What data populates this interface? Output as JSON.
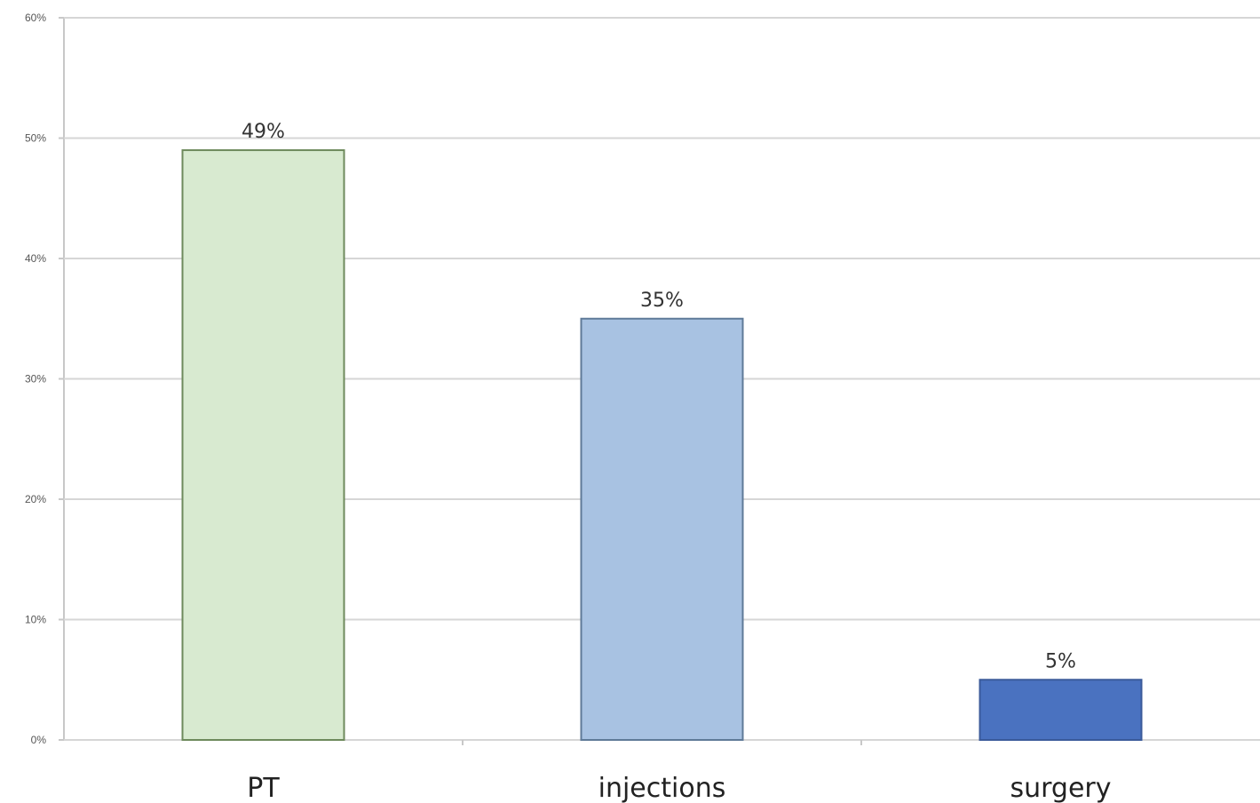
{
  "chart_data": {
    "type": "bar",
    "title": "",
    "xlabel": "",
    "ylabel": "",
    "categories": [
      "PT",
      "injections",
      "surgery"
    ],
    "values": [
      49,
      35,
      5
    ],
    "data_labels": [
      "49%",
      "35%",
      "5%"
    ],
    "ylim": [
      0,
      60
    ],
    "yticks": [
      0,
      10,
      20,
      30,
      40,
      50,
      60
    ],
    "ytick_labels": [
      "0%",
      "10%",
      "20%",
      "30%",
      "40%",
      "50%",
      "60%"
    ],
    "grid": true,
    "legend": "none",
    "colors": [
      "#d8ead0",
      "#a8c2e2",
      "#4a72c0"
    ],
    "edge_colors": [
      "#6e8a5c",
      "#5f7a98",
      "#3a5a9a"
    ]
  }
}
